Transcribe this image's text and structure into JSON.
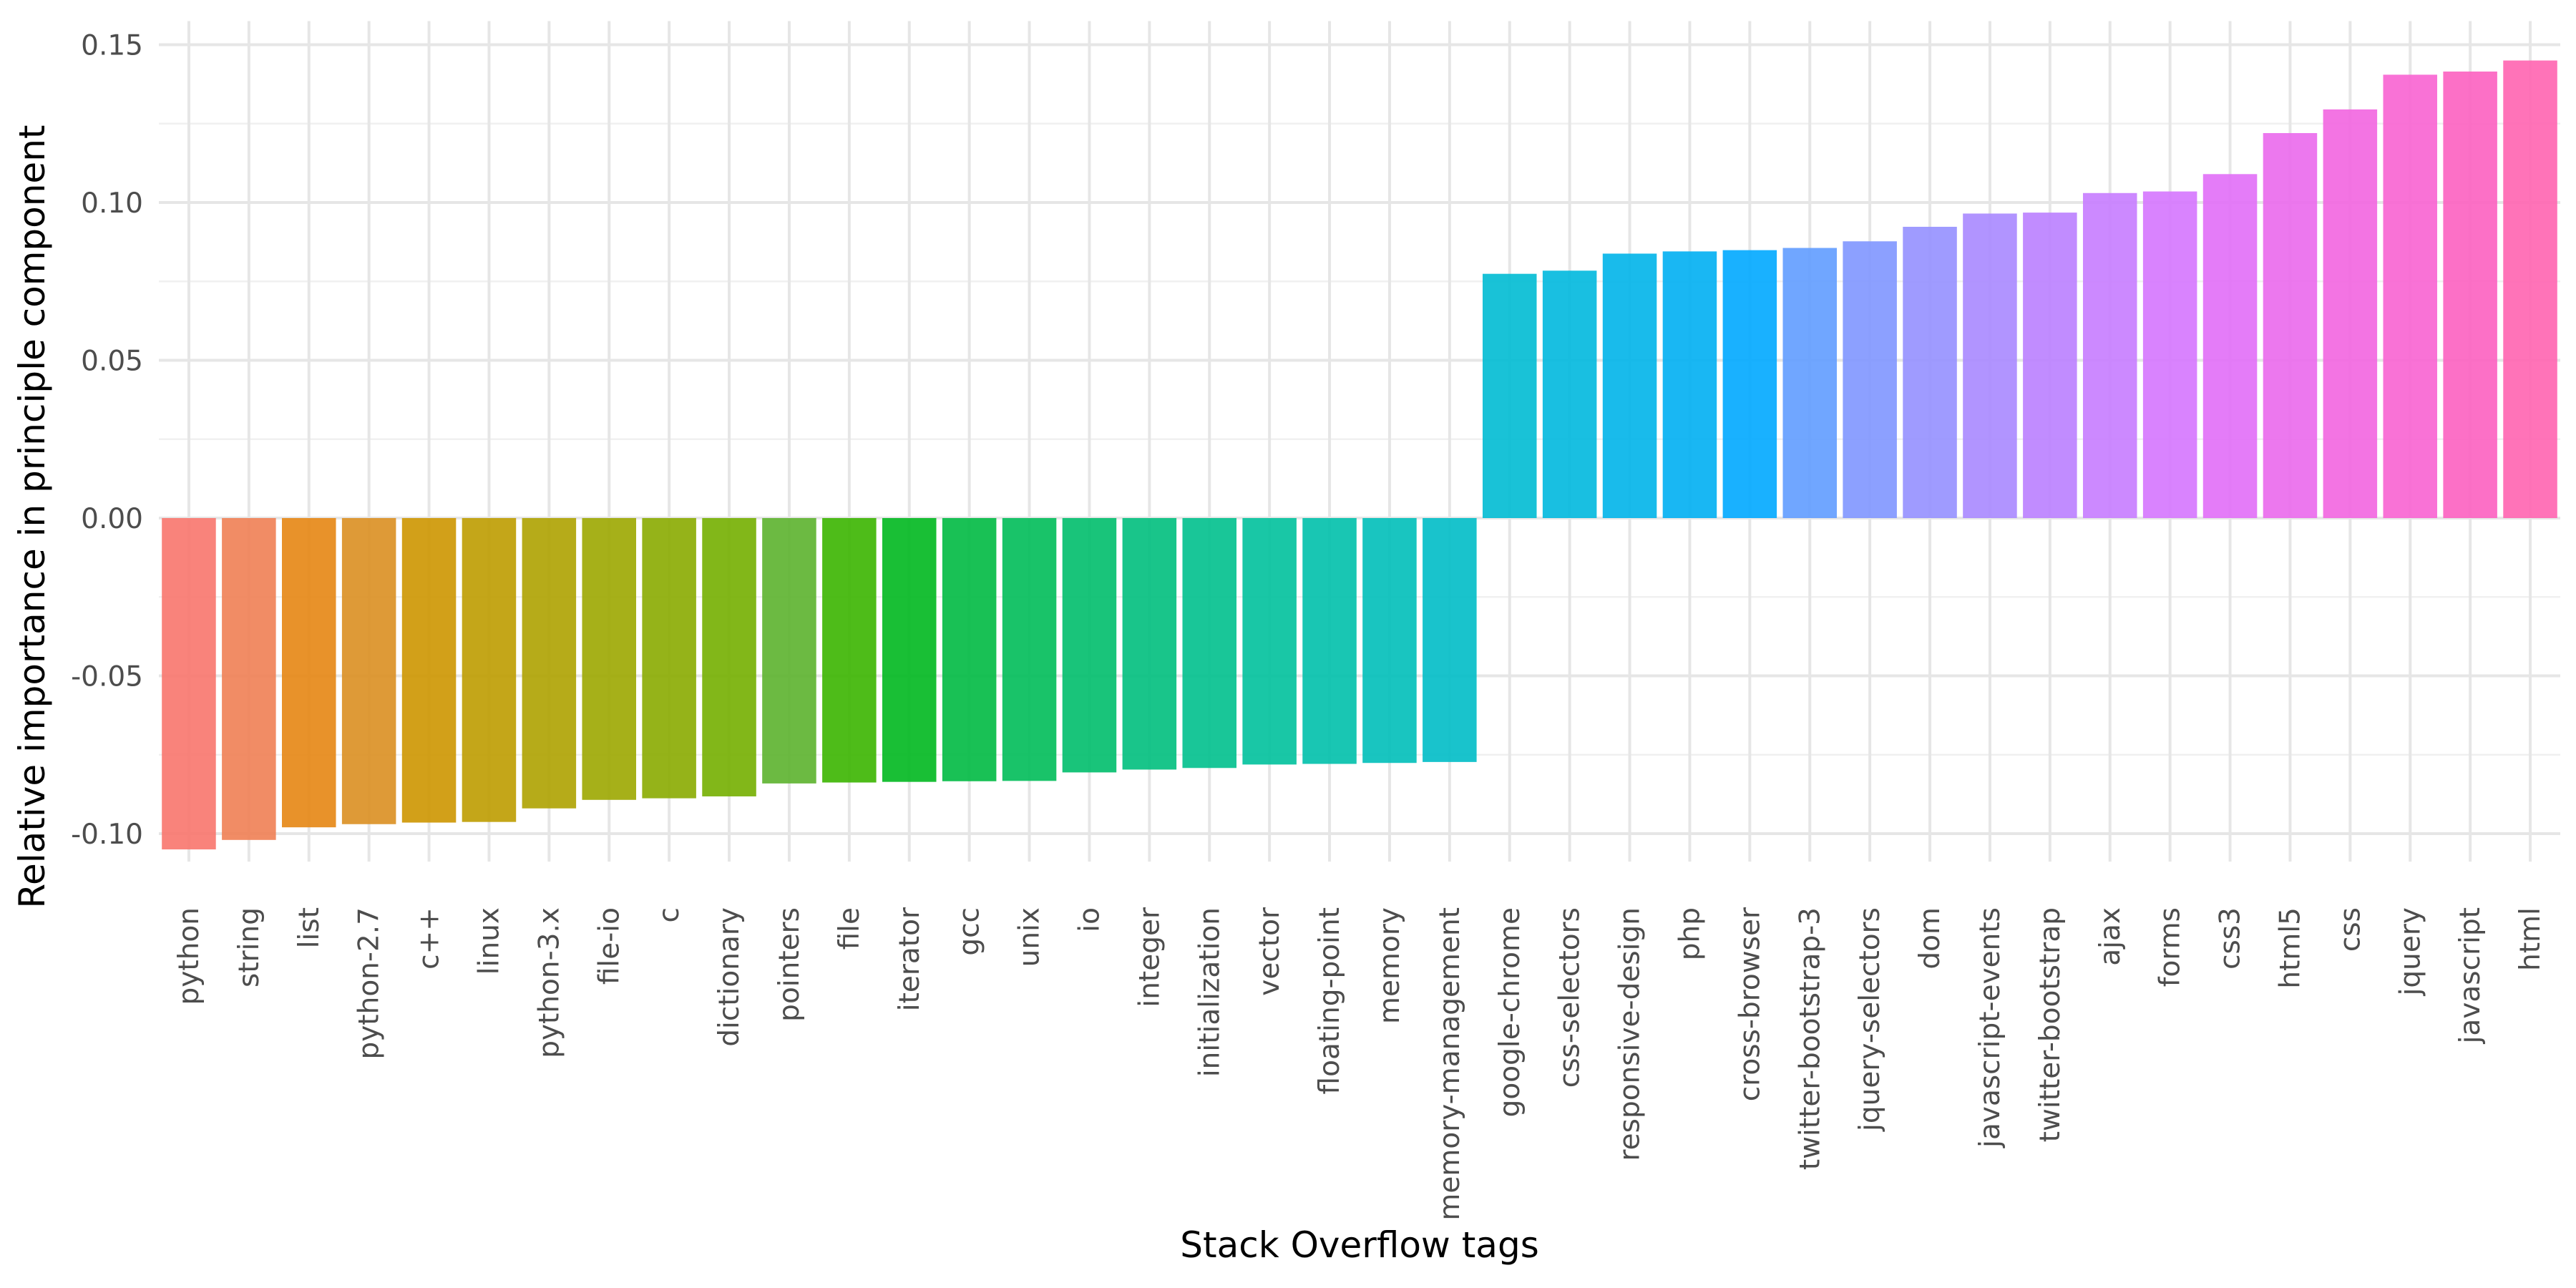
{
  "chart_data": {
    "type": "bar",
    "title": "",
    "xlabel": "Stack Overflow tags",
    "ylabel": "Relative importance in principle component",
    "ylim": [
      -0.11,
      0.15
    ],
    "yticks": [
      -0.1,
      -0.05,
      0.0,
      0.05,
      0.1,
      0.15
    ],
    "ytick_labels": [
      "-0.10",
      "-0.05",
      "0.00",
      "0.05",
      "0.10",
      "0.15"
    ],
    "grid": true,
    "legend": "none",
    "categories": [
      "python",
      "string",
      "list",
      "python-2.7",
      "c++",
      "linux",
      "python-3.x",
      "file-io",
      "c",
      "dictionary",
      "pointers",
      "file",
      "iterator",
      "gcc",
      "unix",
      "io",
      "integer",
      "initialization",
      "vector",
      "floating-point",
      "memory",
      "memory-management",
      "google-chrome",
      "css-selectors",
      "responsive-design",
      "php",
      "cross-browser",
      "twitter-bootstrap-3",
      "jquery-selectors",
      "dom",
      "javascript-events",
      "twitter-bootstrap",
      "ajax",
      "forms",
      "css3",
      "html5",
      "css",
      "jquery",
      "javascript",
      "html"
    ],
    "values": [
      -0.105,
      -0.102,
      -0.098,
      -0.097,
      -0.0965,
      -0.0963,
      -0.092,
      -0.0893,
      -0.0888,
      -0.0882,
      -0.0841,
      -0.0838,
      -0.0836,
      -0.0834,
      -0.0833,
      -0.0806,
      -0.0797,
      -0.0792,
      -0.0781,
      -0.0779,
      -0.0776,
      -0.0773,
      0.0774,
      0.0784,
      0.0838,
      0.0845,
      0.0849,
      0.0856,
      0.0877,
      0.0923,
      0.0965,
      0.0968,
      0.103,
      0.1035,
      0.109,
      0.122,
      0.1295,
      0.1405,
      0.1415,
      0.145
    ],
    "colors": [
      "#F8766D",
      "#F07F54",
      "#E68613",
      "#DA8F21",
      "#CD9600",
      "#BE9C00",
      "#AEA200",
      "#9CA700",
      "#8AAB00",
      "#74AF00",
      "#5CB22E",
      "#3BB500",
      "#00B81F",
      "#00BA42",
      "#00BC59",
      "#00BE6C",
      "#00BF7D",
      "#00C08D",
      "#00C19C",
      "#00C0AB",
      "#00BFB9",
      "#00BDC6",
      "#00BBD3",
      "#00B8DE",
      "#00B4E9",
      "#00AFF2",
      "#00A9FF",
      "#619CFF",
      "#7F96FF",
      "#9590FF",
      "#A988FF",
      "#BA80FF",
      "#C77CFF",
      "#D575FE",
      "#E16EF7",
      "#EA69EC",
      "#F265E0",
      "#F863D1",
      "#FC61C0",
      "#FF64B0"
    ]
  }
}
